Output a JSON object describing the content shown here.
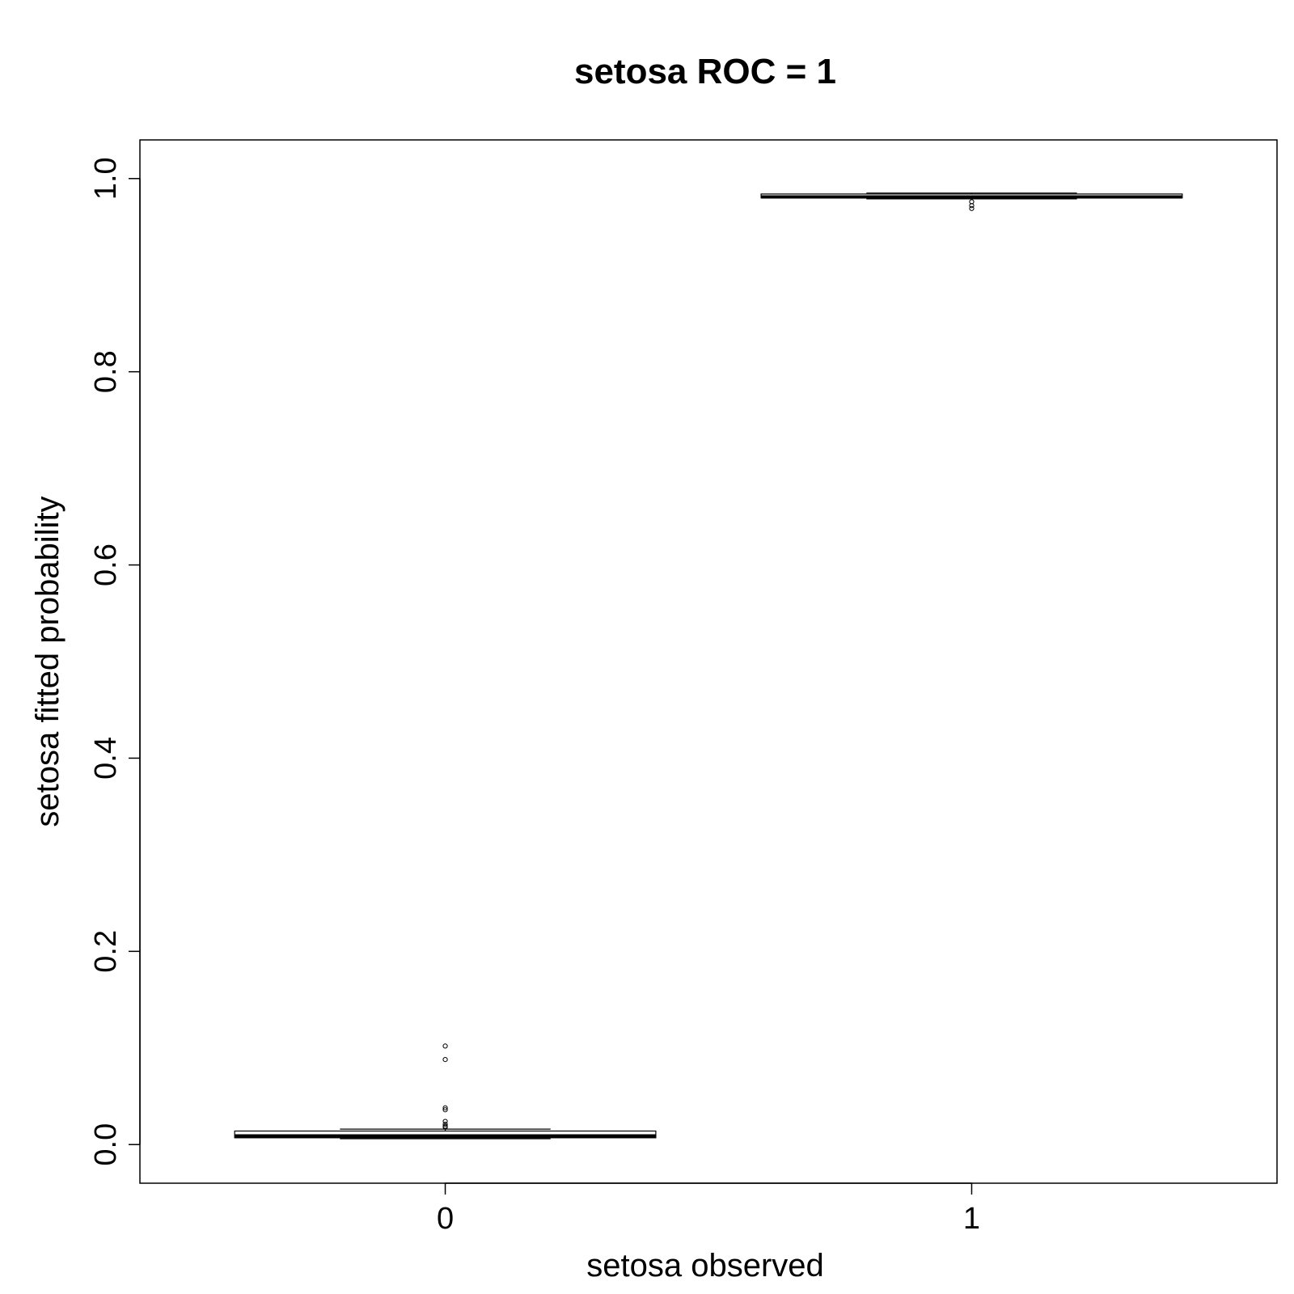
{
  "chart_data": {
    "type": "box",
    "title": "setosa ROC = 1",
    "xlabel": "setosa observed",
    "ylabel": "setosa fitted probability",
    "categories": [
      "0",
      "1"
    ],
    "ylim": [
      -0.04,
      1.04
    ],
    "yticks": [
      0.0,
      0.2,
      0.4,
      0.6,
      0.8,
      1.0
    ],
    "ytick_labels": [
      "0.0",
      "0.2",
      "0.4",
      "0.6",
      "0.8",
      "1.0"
    ],
    "grid": false,
    "boxes": [
      {
        "category": "0",
        "min": 0.006,
        "q1": 0.007,
        "median": 0.009,
        "q3": 0.014,
        "max": 0.016,
        "outliers": [
          0.102,
          0.088,
          0.038,
          0.036,
          0.024,
          0.021,
          0.019,
          0.018
        ]
      },
      {
        "category": "1",
        "min": 0.979,
        "q1": 0.98,
        "median": 0.981,
        "q3": 0.984,
        "max": 0.985,
        "outliers": [
          0.976,
          0.972,
          0.969
        ]
      }
    ],
    "colors": {
      "line": "#000000",
      "background": "#ffffff"
    }
  }
}
